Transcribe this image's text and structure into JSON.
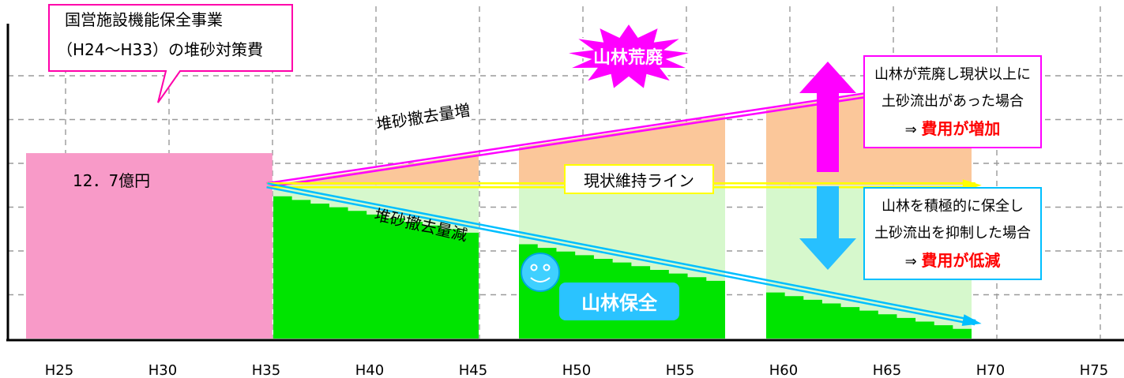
{
  "colors": {
    "pink_bar": "#f89ac8",
    "green": "#00e400",
    "light_green": "#d6f8cc",
    "orange": "#fbc79a",
    "magenta": "#ff00ff",
    "cyan": "#00bfff",
    "yellow": "#ffff00",
    "red_text": "#ff0000"
  },
  "chart_data": {
    "type": "bar",
    "x_ticks": [
      "H25",
      "H30",
      "H35",
      "H40",
      "H45",
      "H50",
      "H55",
      "H60",
      "H65",
      "H70",
      "H75"
    ],
    "baseline_bar": {
      "x_start": "H25",
      "x_end": "H34",
      "value": 12.7,
      "label": "12．7億円"
    },
    "scenario_blocks": [
      {
        "x_start": "H35",
        "x_end": "H44",
        "maintain": 10.5,
        "decrease_end": 8.6,
        "increase_end": 12.6
      },
      {
        "x_start": "H47",
        "x_end": "H57",
        "maintain": 10.5,
        "decrease_end": 5.0,
        "increase_end": 14.2
      },
      {
        "x_start": "H59",
        "x_end": "H69",
        "maintain": 10.5,
        "decrease_end": 1.1,
        "increase_end": 16.6
      }
    ],
    "lines": [
      {
        "label": "堆砂撤去量増",
        "from": [
          "H35",
          10.5
        ],
        "to": [
          "H69",
          17.8
        ]
      },
      {
        "label": "現状維持ライン",
        "from": [
          "H35",
          10.5
        ],
        "to": [
          "H69",
          10.5
        ]
      },
      {
        "label": "堆砂撤去量減",
        "from": [
          "H35",
          10.5
        ],
        "to": [
          "H69",
          1.1
        ]
      }
    ],
    "ylim": [
      0,
      18
    ]
  },
  "annotations": {
    "callout_line1": "国営施設機能保全事業",
    "callout_line2": "（H24～H33）の堆砂対策費",
    "burst_label": "山林荒廃",
    "keep_label": "山林保全",
    "increase_line1": "山林が荒廃し現状以上に",
    "increase_line2": "土砂流出があった場合",
    "increase_arrow": "⇒",
    "increase_result": "費用が増加",
    "decrease_line1": "山林を積極的に保全し",
    "decrease_line2": "土砂流出を抑制した場合",
    "decrease_arrow": "⇒",
    "decrease_result": "費用が低減"
  }
}
